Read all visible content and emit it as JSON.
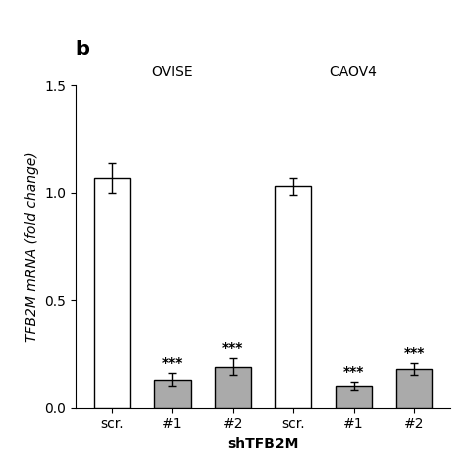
{
  "chart_data": {
    "type": "bar",
    "title": "b",
    "categories": [
      "scr.",
      "#1",
      "#2",
      "scr.",
      "#1",
      "#2"
    ],
    "values": [
      1.07,
      0.13,
      0.19,
      1.03,
      0.1,
      0.18
    ],
    "errors": [
      0.07,
      0.03,
      0.04,
      0.04,
      0.02,
      0.03
    ],
    "colors": [
      "white",
      "#aaaaaa",
      "#aaaaaa",
      "white",
      "#aaaaaa",
      "#aaaaaa"
    ],
    "groups": [
      "OVISE",
      "OVISE",
      "OVISE",
      "CAOV4",
      "CAOV4",
      "CAOV4"
    ],
    "annotations": [
      null,
      "***",
      "***",
      null,
      "***",
      "***"
    ],
    "xlabel": "shTFB2M",
    "ylabel": "TFB2M mRNA (fold change)",
    "ylim": [
      0.0,
      1.5
    ],
    "yticks": [
      {
        "value": 0,
        "label": "0.0"
      },
      0.5,
      {
        "value": 1,
        "label": "1.0"
      },
      1.5
    ]
  }
}
